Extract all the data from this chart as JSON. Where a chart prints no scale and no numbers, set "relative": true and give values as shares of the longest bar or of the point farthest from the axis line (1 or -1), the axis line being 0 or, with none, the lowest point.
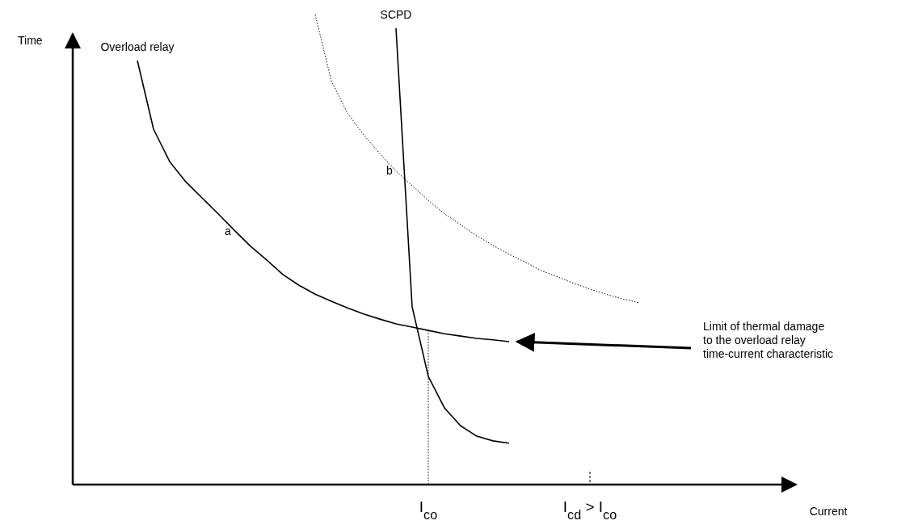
{
  "chart_data": {
    "type": "line",
    "relative": true,
    "xlabel": "Current",
    "ylabel": "Time",
    "categories": [
      null,
      null,
      null,
      null,
      null,
      null,
      null,
      null,
      null,
      null,
      null,
      null,
      null,
      null,
      null,
      null,
      null,
      null,
      null,
      null,
      null,
      null,
      "I$_{co}$",
      null,
      null,
      null,
      null,
      null,
      null,
      null,
      null,
      null,
      "I$_{cd}$ > I$_{co}$",
      null,
      null,
      null,
      null,
      null,
      null,
      null,
      null,
      null,
      null,
      null,
      null
    ],
    "series": [
      {
        "name": "Overload relay",
        "color": "#000000",
        "line_style": "solid",
        "values": [
          null,
          null,
          null,
          null,
          0.902,
          0.756,
          0.687,
          0.644,
          0.61,
          0.576,
          0.541,
          0.507,
          0.478,
          0.447,
          0.424,
          0.405,
          0.39,
          0.376,
          0.363,
          0.352,
          0.342,
          0.335,
          0.328,
          0.321,
          0.316,
          0.311,
          0.308,
          0.304,
          null,
          null,
          null,
          null,
          null,
          null,
          null,
          null,
          null,
          null,
          null,
          null,
          null,
          null,
          null,
          null,
          null
        ]
      },
      {
        "color": "#000000",
        "line_style": "dotted",
        "values": [
          null,
          null,
          null,
          null,
          null,
          null,
          null,
          null,
          null,
          null,
          null,
          null,
          null,
          null,
          null,
          1.0,
          0.859,
          0.79,
          0.744,
          0.704,
          0.667,
          0.636,
          0.605,
          0.576,
          0.553,
          0.529,
          0.509,
          0.49,
          0.473,
          0.455,
          0.442,
          0.428,
          0.416,
          0.405,
          0.395,
          0.387,
          null,
          null,
          null,
          null,
          null,
          null,
          null,
          null,
          null
        ]
      },
      {
        "name": "SCPD",
        "color": "#000000",
        "line_style": "solid",
        "values": [
          null,
          null,
          null,
          null,
          null,
          null,
          null,
          null,
          null,
          null,
          null,
          null,
          null,
          null,
          null,
          null,
          null,
          null,
          null,
          null,
          0.971,
          0.378,
          0.23,
          0.163,
          0.125,
          0.103,
          0.093,
          0.088,
          null,
          null,
          null,
          null,
          null,
          null,
          null,
          null,
          null,
          null,
          null,
          null,
          null,
          null,
          null,
          null,
          null
        ]
      }
    ],
    "annotations": [
      "a",
      "b",
      "Limit of thermal damage\nto the overload relay\ntime-current characteristic"
    ]
  }
}
